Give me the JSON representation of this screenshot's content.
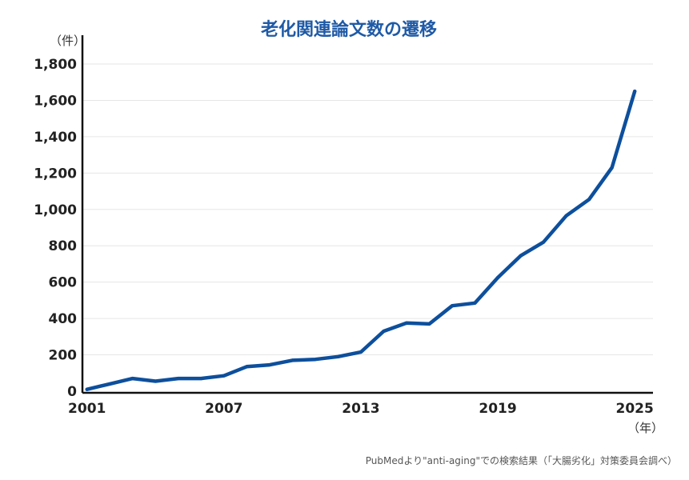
{
  "chart_data": {
    "type": "line",
    "title": "老化関連論文数の遷移",
    "y_unit": "（件）",
    "x_unit": "（年）",
    "source": "PubMedより\"anti-aging\"での検索結果（「大腸劣化」対策委員会調べ）",
    "x_ticks": [
      "2001",
      "2007",
      "2013",
      "2019",
      "2025"
    ],
    "y_ticks": [
      "0",
      "200",
      "400",
      "600",
      "800",
      "1,000",
      "1,200",
      "1,400",
      "1,600",
      "1,800"
    ],
    "xlim": [
      2000.8,
      2025.8
    ],
    "ylim": [
      0,
      1800
    ],
    "grid": true,
    "line_color": "#0d4f9c",
    "title_color": "#1f5aa6",
    "series": [
      {
        "x": [
          2001,
          2002,
          2003,
          2004,
          2005,
          2006,
          2007,
          2008,
          2009,
          2010,
          2011,
          2012,
          2013,
          2014,
          2015,
          2016,
          2017,
          2018,
          2019,
          2020,
          2021,
          2022,
          2023,
          2024,
          2025
        ],
        "values": [
          10,
          40,
          70,
          55,
          70,
          70,
          85,
          135,
          145,
          170,
          175,
          190,
          215,
          330,
          375,
          370,
          470,
          485,
          625,
          745,
          820,
          965,
          1055,
          1230,
          1650
        ]
      }
    ]
  }
}
